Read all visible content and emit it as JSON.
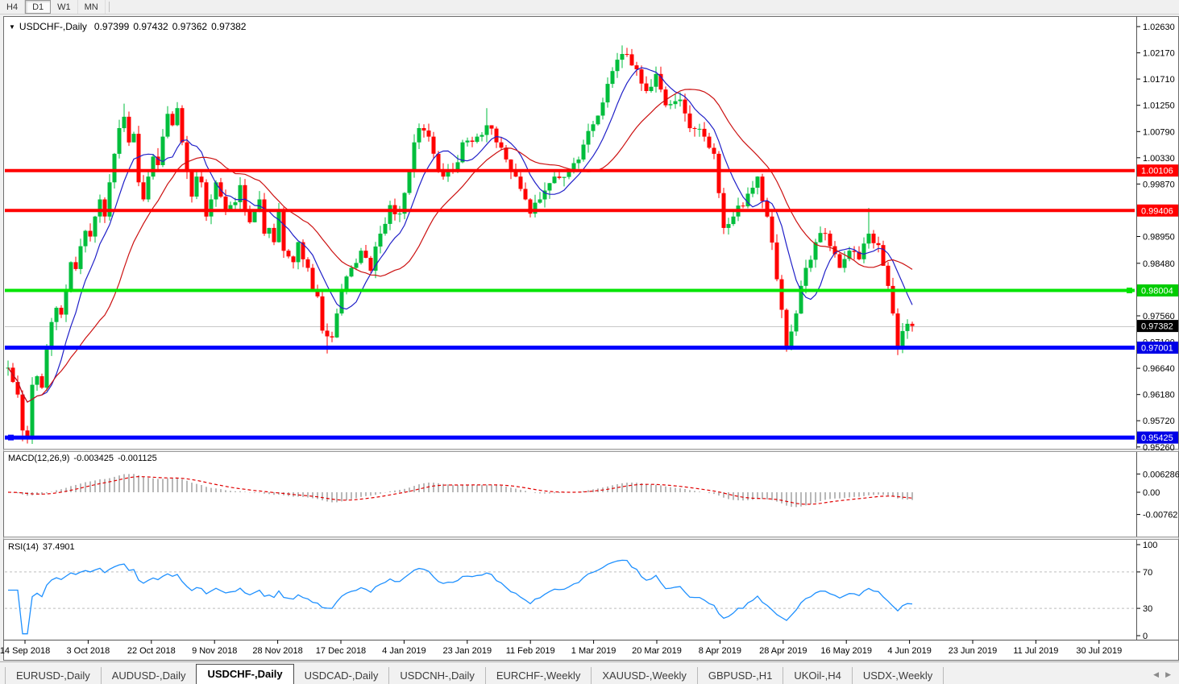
{
  "toolbar": {
    "timeframes": [
      {
        "label": "H4",
        "active": false
      },
      {
        "label": "D1",
        "active": true
      },
      {
        "label": "W1",
        "active": false
      },
      {
        "label": "MN",
        "active": false
      }
    ]
  },
  "header": {
    "collapse_icon": "▼",
    "symbol": "USDCHF-,Daily",
    "open": "0.97399",
    "high": "0.97432",
    "low": "0.97362",
    "close": "0.97382"
  },
  "price_axis": {
    "ticks": [
      "1.02630",
      "1.02170",
      "1.01710",
      "1.01250",
      "1.00790",
      "1.00330",
      "0.99870",
      "0.98950",
      "0.98480",
      "0.97560",
      "0.97100",
      "0.96640",
      "0.96180",
      "0.95720",
      "0.95260"
    ],
    "highlights": [
      {
        "label": "1.00106",
        "price": 1.00106,
        "bg": "#FF0000",
        "fg": "#FFFFFF"
      },
      {
        "label": "0.99406",
        "price": 0.99406,
        "bg": "#FF0000",
        "fg": "#FFFFFF"
      },
      {
        "label": "0.98004",
        "price": 0.98004,
        "bg": "#00CC00",
        "fg": "#FFFFFF"
      },
      {
        "label": "0.97382",
        "price": 0.97382,
        "bg": "#000000",
        "fg": "#FFFFFF"
      },
      {
        "label": "0.97001",
        "price": 0.97001,
        "bg": "#0000E6",
        "fg": "#FFFFFF"
      },
      {
        "label": "0.95425",
        "price": 0.95425,
        "bg": "#0000E6",
        "fg": "#FFFFFF"
      }
    ]
  },
  "date_axis": {
    "labels": [
      "14 Sep 2018",
      "3 Oct 2018",
      "22 Oct 2018",
      "9 Nov 2018",
      "28 Nov 2018",
      "17 Dec 2018",
      "4 Jan 2019",
      "23 Jan 2019",
      "11 Feb 2019",
      "1 Mar 2019",
      "20 Mar 2019",
      "8 Apr 2019",
      "28 Apr 2019",
      "16 May 2019",
      "4 Jun 2019",
      "23 Jun 2019",
      "11 Jul 2019",
      "30 Jul 2019"
    ]
  },
  "macd_panel": {
    "label": "MACD(12,26,9)",
    "value_main": "-0.003425",
    "value_signal": "-0.001125",
    "axis_labels": [
      {
        "text": "0.006286",
        "value": 0.006286
      },
      {
        "text": "0.00",
        "value": 0
      },
      {
        "text": "-0.00762",
        "value": -0.00762
      }
    ]
  },
  "rsi_panel": {
    "label": "RSI(14)",
    "value": "37.4901",
    "axis_labels": [
      {
        "text": "100",
        "value": 100
      },
      {
        "text": "70",
        "value": 70
      },
      {
        "text": "30",
        "value": 30
      },
      {
        "text": "0",
        "value": 0
      }
    ],
    "dashed_levels": [
      70,
      30
    ]
  },
  "tabs": {
    "items": [
      {
        "label": "EURUSD-,Daily",
        "active": false
      },
      {
        "label": "AUDUSD-,Daily",
        "active": false
      },
      {
        "label": "USDCHF-,Daily",
        "active": true
      },
      {
        "label": "USDCAD-,Daily",
        "active": false
      },
      {
        "label": "USDCNH-,Daily",
        "active": false
      },
      {
        "label": "EURCHF-,Weekly",
        "active": false
      },
      {
        "label": "XAUUSD-,Weekly",
        "active": false
      },
      {
        "label": "GBPUSD-,H1",
        "active": false
      },
      {
        "label": "UKOil-,H4",
        "active": false
      },
      {
        "label": "USDX-,Weekly",
        "active": false
      }
    ],
    "scroll_left_icon": "◀",
    "scroll_right_icon": "▶"
  },
  "chart_data": {
    "type": "candlestick",
    "symbol": "USDCHF",
    "timeframe": "Daily",
    "current_ohlc": {
      "open": 0.97399,
      "high": 0.97432,
      "low": 0.97362,
      "close": 0.97382
    },
    "candle_count": 188,
    "seed": 1234567,
    "price_path_anchors": [
      [
        0,
        0.9665
      ],
      [
        1,
        0.964
      ],
      [
        2,
        0.9618
      ],
      [
        3,
        0.9555
      ],
      [
        4,
        0.9545
      ],
      [
        5,
        0.9635
      ],
      [
        6,
        0.965
      ],
      [
        7,
        0.963
      ],
      [
        8,
        0.97
      ],
      [
        9,
        0.9745
      ],
      [
        10,
        0.977
      ],
      [
        11,
        0.9758
      ],
      [
        12,
        0.98
      ],
      [
        13,
        0.985
      ],
      [
        14,
        0.9838
      ],
      [
        15,
        0.9878
      ],
      [
        16,
        0.9905
      ],
      [
        17,
        0.9895
      ],
      [
        18,
        0.993
      ],
      [
        19,
        0.996
      ],
      [
        20,
        0.993
      ],
      [
        21,
        0.999
      ],
      [
        22,
        1.004
      ],
      [
        23,
        1.0085
      ],
      [
        24,
        1.0105
      ],
      [
        25,
        1.006
      ],
      [
        26,
        1.0075
      ],
      [
        27,
        0.999
      ],
      [
        28,
        0.996
      ],
      [
        29,
        1.0
      ],
      [
        30,
        1.0035
      ],
      [
        31,
        1.002
      ],
      [
        32,
        1.007
      ],
      [
        33,
        1.011
      ],
      [
        34,
        1.009
      ],
      [
        35,
        1.012
      ],
      [
        36,
        1.006
      ],
      [
        37,
        1.001
      ],
      [
        38,
        0.9965
      ],
      [
        39,
        1.0
      ],
      [
        40,
        0.999
      ],
      [
        41,
        0.993
      ],
      [
        42,
        0.996
      ],
      [
        43,
        0.999
      ],
      [
        44,
        0.9965
      ],
      [
        45,
        0.994
      ],
      [
        46,
        0.995
      ],
      [
        47,
        0.9955
      ],
      [
        48,
        0.9985
      ],
      [
        49,
        0.994
      ],
      [
        50,
        0.992
      ],
      [
        51,
        0.994
      ],
      [
        52,
        0.996
      ],
      [
        53,
        0.99
      ],
      [
        54,
        0.991
      ],
      [
        55,
        0.9885
      ],
      [
        56,
        0.994
      ],
      [
        57,
        0.987
      ],
      [
        58,
        0.986
      ],
      [
        59,
        0.985
      ],
      [
        60,
        0.9885
      ],
      [
        61,
        0.9855
      ],
      [
        62,
        0.984
      ],
      [
        63,
        0.98
      ],
      [
        64,
        0.979
      ],
      [
        65,
        0.973
      ],
      [
        66,
        0.972
      ],
      [
        67,
        0.9718
      ],
      [
        68,
        0.976
      ],
      [
        69,
        0.98
      ],
      [
        71,
        0.984
      ],
      [
        73,
        0.987
      ],
      [
        75,
        0.9835
      ],
      [
        77,
        0.99
      ],
      [
        79,
        0.995
      ],
      [
        81,
        0.9935
      ],
      [
        83,
        1.001
      ],
      [
        84,
        1.006
      ],
      [
        85,
        1.0085
      ],
      [
        87,
        1.007
      ],
      [
        88,
        1.004
      ],
      [
        90,
        1.0
      ],
      [
        92,
        1.001
      ],
      [
        94,
        1.006
      ],
      [
        97,
        1.007
      ],
      [
        99,
        1.009
      ],
      [
        101,
        1.006
      ],
      [
        103,
        1.003
      ],
      [
        105,
        1.0
      ],
      [
        107,
        0.996
      ],
      [
        108,
        0.9935
      ],
      [
        110,
        0.996
      ],
      [
        113,
        1.0
      ],
      [
        116,
        1.001
      ],
      [
        118,
        1.003
      ],
      [
        120,
        1.008
      ],
      [
        123,
        1.013
      ],
      [
        125,
        1.0185
      ],
      [
        127,
        1.0215
      ],
      [
        129,
        1.0195
      ],
      [
        132,
        1.015
      ],
      [
        134,
        1.018
      ],
      [
        136,
        1.0125
      ],
      [
        139,
        1.0135
      ],
      [
        141,
        1.0085
      ],
      [
        144,
        1.007
      ],
      [
        146,
        1.004
      ],
      [
        148,
        0.991
      ],
      [
        150,
        0.993
      ],
      [
        153,
        0.997
      ],
      [
        155,
        1.0
      ],
      [
        157,
        0.993
      ],
      [
        159,
        0.982
      ],
      [
        161,
        0.97
      ],
      [
        163,
        0.976
      ],
      [
        165,
        0.984
      ],
      [
        167,
        0.9885
      ],
      [
        169,
        0.99
      ],
      [
        172,
        0.984
      ],
      [
        174,
        0.987
      ],
      [
        176,
        0.9855
      ],
      [
        178,
        0.99
      ],
      [
        180,
        0.988
      ],
      [
        183,
        0.976
      ],
      [
        184,
        0.97
      ],
      [
        186,
        0.9742
      ],
      [
        187,
        0.97382
      ]
    ],
    "wick_events": [
      {
        "i": 3,
        "low": 0.9536
      },
      {
        "i": 4,
        "low": 0.9532
      },
      {
        "i": 24,
        "high": 1.0128
      },
      {
        "i": 35,
        "high": 1.013
      },
      {
        "i": 66,
        "low": 0.969
      },
      {
        "i": 99,
        "high": 1.012
      },
      {
        "i": 127,
        "high": 1.023
      },
      {
        "i": 161,
        "low": 0.9693
      },
      {
        "i": 178,
        "high": 0.9945
      },
      {
        "i": 184,
        "low": 0.9692
      }
    ],
    "moving_averages": [
      {
        "name": "fast-ma",
        "period": 8,
        "color": "#2020C8"
      },
      {
        "name": "slow-ma",
        "period": 21,
        "color": "#CC1111"
      }
    ],
    "hlines": [
      {
        "price": 1.00106,
        "color": "#FF0000",
        "width": 4,
        "handle": null
      },
      {
        "price": 0.99406,
        "color": "#FF0000",
        "width": 4,
        "handle": null
      },
      {
        "price": 0.98004,
        "color": "#00E400",
        "width": 4,
        "handle": "right"
      },
      {
        "price": 0.97001,
        "color": "#0000FF",
        "width": 5,
        "handle": null
      },
      {
        "price": 0.95425,
        "color": "#0000FF",
        "width": 5,
        "handle": "left"
      }
    ],
    "current_price": 0.97382,
    "macd": {
      "fast": 12,
      "slow": 26,
      "signal": 9,
      "last_main": -0.003425,
      "last_signal": -0.001125,
      "axis_max": 0.006286,
      "axis_min": -0.00762
    },
    "rsi": {
      "period": 14,
      "last_value": 37.4901,
      "range": [
        0,
        100
      ],
      "dashed_levels": [
        70,
        30
      ]
    },
    "colors": {
      "up_candle": "#00BE3C",
      "down_candle": "#FF0000",
      "macd_histogram": "#9A9A9A",
      "macd_signal": "#E00000",
      "rsi_line": "#1E90FF",
      "current_price_line": "#C8C8C8",
      "background": "#FFFFFF"
    }
  }
}
